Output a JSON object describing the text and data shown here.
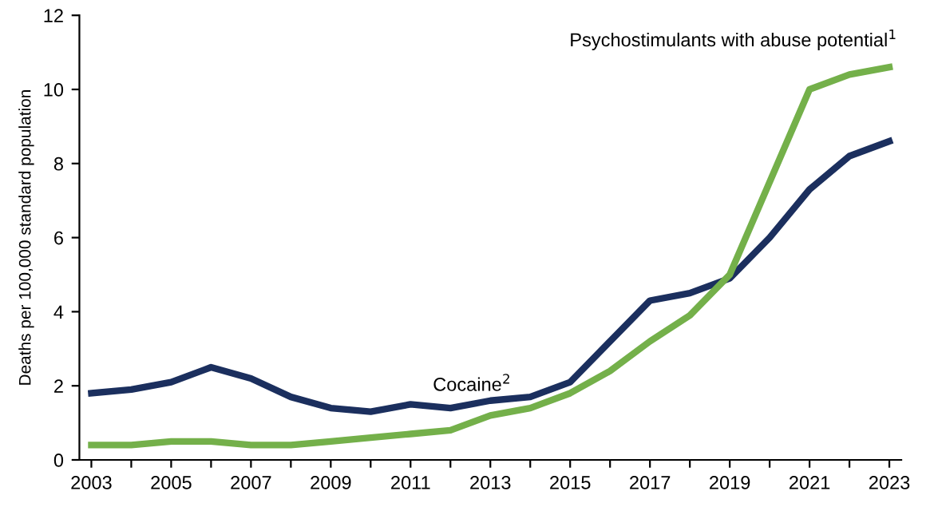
{
  "chart_data": {
    "type": "line",
    "ylabel": "Deaths per 100,000 standard population",
    "x": [
      2003,
      2004,
      2005,
      2006,
      2007,
      2008,
      2009,
      2010,
      2011,
      2012,
      2013,
      2014,
      2015,
      2016,
      2017,
      2018,
      2019,
      2020,
      2021,
      2022,
      2023
    ],
    "series": [
      {
        "name": "Cocaine$^{2}$",
        "color": "#1b2f5e",
        "values": [
          1.8,
          1.9,
          2.1,
          2.5,
          2.2,
          1.7,
          1.4,
          1.3,
          1.5,
          1.4,
          1.6,
          1.7,
          2.1,
          3.2,
          4.3,
          4.5,
          4.9,
          6.0,
          7.3,
          8.2,
          8.6
        ]
      },
      {
        "name": "Psychostimulants with abuse potential$^{1}$",
        "color": "#74b04a",
        "values": [
          0.4,
          0.4,
          0.5,
          0.5,
          0.4,
          0.4,
          0.5,
          0.6,
          0.7,
          0.8,
          1.2,
          1.4,
          1.8,
          2.4,
          3.2,
          3.9,
          5.0,
          7.5,
          10.0,
          10.4,
          10.6
        ]
      }
    ],
    "xlim": [
      2002.7,
      2023.3
    ],
    "xticks": [
      2003,
      {
        "value": 2004,
        "label": null
      },
      2005,
      {
        "value": 2006,
        "label": null
      },
      2007,
      {
        "value": 2008,
        "label": null
      },
      2009,
      {
        "value": 2010,
        "label": null
      },
      2011,
      {
        "value": 2012,
        "label": null
      },
      2013,
      {
        "value": 2014,
        "label": null
      },
      2015,
      {
        "value": 2016,
        "label": null
      },
      2017,
      {
        "value": 2018,
        "label": null
      },
      2019,
      {
        "value": 2020,
        "label": null
      },
      2021,
      {
        "value": 2022,
        "label": null
      },
      2023
    ],
    "ylim": [
      0,
      12
    ],
    "yticks": [
      0,
      2,
      4,
      6,
      8,
      10,
      12
    ],
    "grid": false,
    "legend": false,
    "marker": "none",
    "line_style": "solid"
  }
}
